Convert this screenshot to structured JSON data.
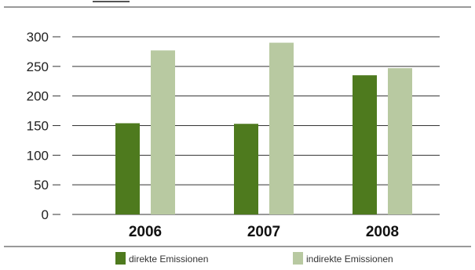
{
  "chart_data": {
    "type": "bar",
    "title": "",
    "xlabel": "",
    "ylabel": "",
    "categories": [
      "2006",
      "2007",
      "2008"
    ],
    "series": [
      {
        "name": "direkte Emissionen",
        "values": [
          154,
          153,
          235
        ],
        "color": "#4e7a1e"
      },
      {
        "name": "indirekte Emissionen",
        "values": [
          277,
          290,
          247
        ],
        "color": "#b8c9a1"
      }
    ],
    "ylim": [
      0,
      300
    ],
    "yticks": [
      0,
      50,
      100,
      150,
      200,
      250,
      300
    ],
    "grid": true,
    "legend": "bottom"
  }
}
